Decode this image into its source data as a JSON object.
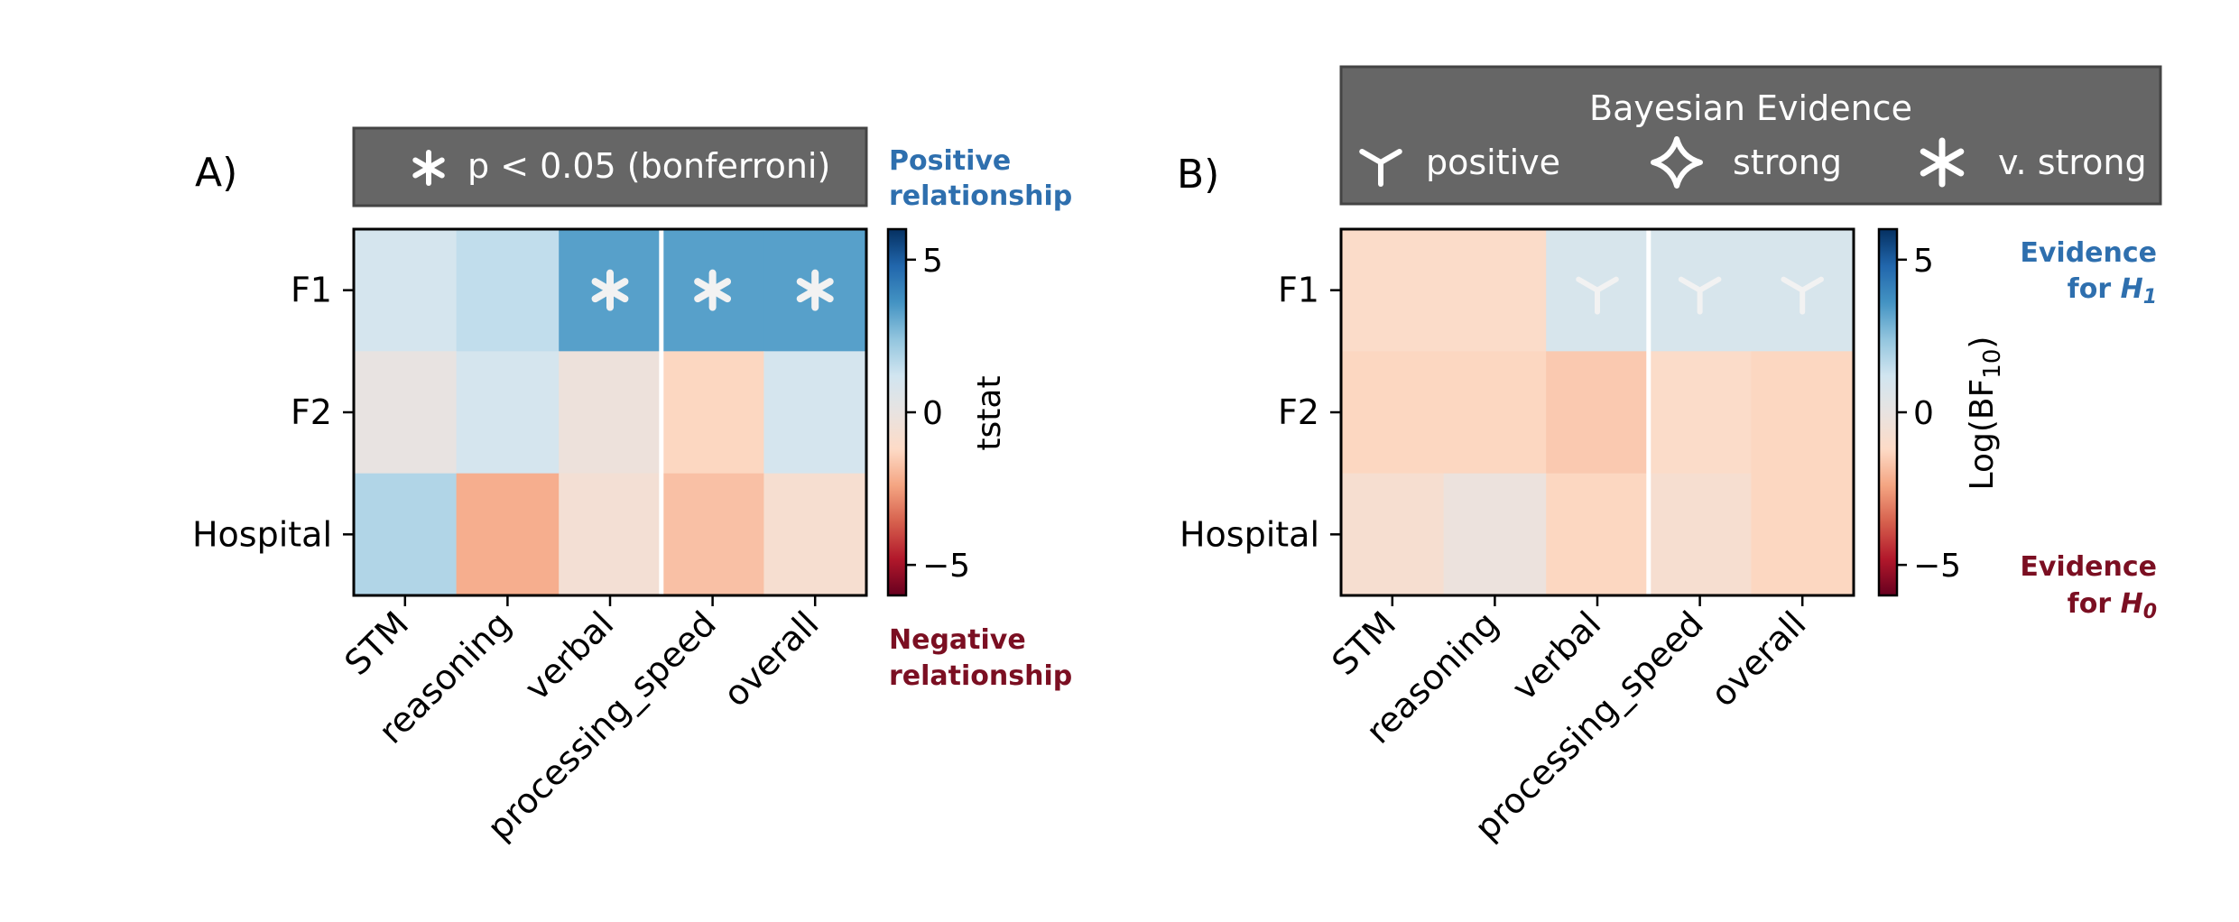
{
  "panel_a": {
    "label": "A)",
    "legend_text": "p < 0.05 (bonferroni)",
    "legend_icon": "asterisk-icon",
    "colorbar_label": "tstat",
    "positive_note": [
      "Positive",
      "relationship"
    ],
    "negative_note": [
      "Negative",
      "relationship"
    ]
  },
  "panel_b": {
    "label": "B)",
    "legend_title": "Bayesian Evidence",
    "legend_items": [
      {
        "icon": "tri-icon",
        "label": "positive"
      },
      {
        "icon": "four-point-star-icon",
        "label": "strong"
      },
      {
        "icon": "asterisk-icon",
        "label": "v. strong"
      }
    ],
    "colorbar_label": "Log(BF",
    "colorbar_label_sub": "10",
    "colorbar_label_close": ")",
    "h1_note": {
      "line1": "Evidence",
      "line2_prefix": "for ",
      "h": "H",
      "sub": "1"
    },
    "h0_note": {
      "line1": "Evidence",
      "line2_prefix": "for ",
      "h": "H",
      "sub": "0"
    }
  },
  "colors": {
    "positive_note": "#2e6fae",
    "negative_note": "#7b0f22",
    "legend_box": "#666666",
    "legend_text": "#ffffff",
    "marker": "#f2f2f2"
  },
  "chart_data": [
    {
      "type": "heatmap",
      "rows": [
        "F1",
        "F2",
        "Hospital"
      ],
      "columns": [
        "STM",
        "reasoning",
        "verbal",
        "processing_speed",
        "overall"
      ],
      "values": [
        [
          1.0,
          1.5,
          3.3,
          3.3,
          3.3
        ],
        [
          0.0,
          1.0,
          -0.3,
          -1.3,
          1.0
        ],
        [
          1.8,
          -2.2,
          -0.6,
          -1.8,
          -0.8
        ]
      ],
      "significant": [
        [
          false,
          false,
          true,
          true,
          true
        ],
        [
          false,
          false,
          false,
          false,
          false
        ],
        [
          false,
          false,
          false,
          false,
          false
        ]
      ],
      "colorbar": {
        "label": "tstat",
        "range": [
          -6,
          6
        ],
        "ticks": [
          -5,
          0,
          5
        ],
        "colormap": "RdBu_r"
      },
      "divider_after_column": "verbal"
    },
    {
      "type": "heatmap",
      "rows": [
        "F1",
        "F2",
        "Hospital"
      ],
      "columns": [
        "STM",
        "reasoning",
        "verbal",
        "processing_speed",
        "overall"
      ],
      "values": [
        [
          -1.1,
          -1.1,
          0.9,
          0.9,
          0.9
        ],
        [
          -1.3,
          -1.3,
          -1.6,
          -1.1,
          -1.3
        ],
        [
          -0.8,
          -0.2,
          -1.3,
          -0.8,
          -1.3
        ]
      ],
      "evidence": [
        [
          "none",
          "none",
          "positive",
          "positive",
          "positive"
        ],
        [
          "none",
          "none",
          "none",
          "none",
          "none"
        ],
        [
          "none",
          "none",
          "none",
          "none",
          "none"
        ]
      ],
      "colorbar": {
        "label": "Log(BF10)",
        "range": [
          -6,
          6
        ],
        "ticks": [
          -5,
          0,
          5
        ],
        "colormap": "RdBu_r"
      },
      "divider_after_column": "verbal"
    }
  ]
}
